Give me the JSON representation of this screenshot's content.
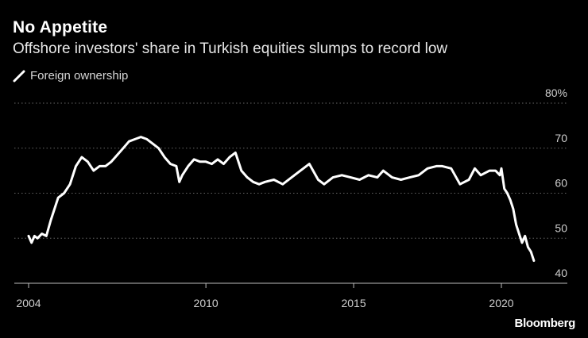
{
  "header": {
    "title": "No Appetite",
    "subtitle": "Offshore investors' share in Turkish equities slumps to record low"
  },
  "source": "Bloomberg",
  "colors": {
    "background": "#000000",
    "line": "#ffffff",
    "grid": "#666666"
  },
  "chart_data": {
    "type": "line",
    "title": "No Appetite",
    "subtitle": "Offshore investors' share in Turkish equities slumps to record low",
    "legend": [
      "Foreign ownership"
    ],
    "legend_position": "top-left",
    "grid": true,
    "y_axis_position": "right",
    "ylim": [
      40,
      80
    ],
    "y_ticks": [
      40,
      50,
      60,
      70,
      80
    ],
    "y_tick_labels": [
      "40",
      "50",
      "60",
      "70",
      "80%"
    ],
    "xlim": [
      2004,
      2022
    ],
    "x_ticks": [
      2004,
      2010,
      2015,
      2020
    ],
    "x_tick_labels": [
      "2004",
      "2010",
      "2015",
      "2020"
    ],
    "series": [
      {
        "name": "Foreign ownership",
        "x": [
          2004.0,
          2004.1,
          2004.2,
          2004.3,
          2004.45,
          2004.6,
          2004.75,
          2004.9,
          2005.0,
          2005.2,
          2005.4,
          2005.6,
          2005.8,
          2006.0,
          2006.2,
          2006.4,
          2006.6,
          2006.8,
          2007.0,
          2007.2,
          2007.4,
          2007.6,
          2007.8,
          2008.0,
          2008.2,
          2008.4,
          2008.6,
          2008.8,
          2009.0,
          2009.1,
          2009.2,
          2009.4,
          2009.6,
          2009.8,
          2010.0,
          2010.2,
          2010.4,
          2010.6,
          2010.8,
          2011.0,
          2011.2,
          2011.4,
          2011.6,
          2011.8,
          2012.0,
          2012.3,
          2012.6,
          2012.9,
          2013.2,
          2013.5,
          2013.8,
          2014.0,
          2014.3,
          2014.6,
          2014.9,
          2015.2,
          2015.5,
          2015.8,
          2016.0,
          2016.3,
          2016.6,
          2016.9,
          2017.2,
          2017.5,
          2017.8,
          2018.0,
          2018.3,
          2018.6,
          2018.9,
          2019.1,
          2019.3,
          2019.6,
          2019.8,
          2019.95,
          2020.0,
          2020.1,
          2020.2,
          2020.3,
          2020.4,
          2020.5,
          2020.6,
          2020.7,
          2020.8,
          2020.9,
          2021.0,
          2021.1
        ],
        "values": [
          50.5,
          49.0,
          50.5,
          50.0,
          51.0,
          50.5,
          54.0,
          57.0,
          59.0,
          60.0,
          62.0,
          66.0,
          68.0,
          67.0,
          65.0,
          66.0,
          66.0,
          67.0,
          68.5,
          70.0,
          71.5,
          72.0,
          72.5,
          72.0,
          71.0,
          70.0,
          68.0,
          66.5,
          66.0,
          62.5,
          64.0,
          66.0,
          67.5,
          67.0,
          67.0,
          66.5,
          67.5,
          66.5,
          68.0,
          69.0,
          65.0,
          63.5,
          62.5,
          62.0,
          62.5,
          63.0,
          62.0,
          63.5,
          65.0,
          66.5,
          63.0,
          62.0,
          63.5,
          64.0,
          63.5,
          63.0,
          64.0,
          63.5,
          65.0,
          63.5,
          63.0,
          63.5,
          64.0,
          65.5,
          66.0,
          66.0,
          65.5,
          62.0,
          63.0,
          65.5,
          64.0,
          65.0,
          65.0,
          64.0,
          65.5,
          61.0,
          60.0,
          58.5,
          56.5,
          53.0,
          51.0,
          49.0,
          50.5,
          48.0,
          47.0,
          45.0
        ]
      }
    ]
  }
}
